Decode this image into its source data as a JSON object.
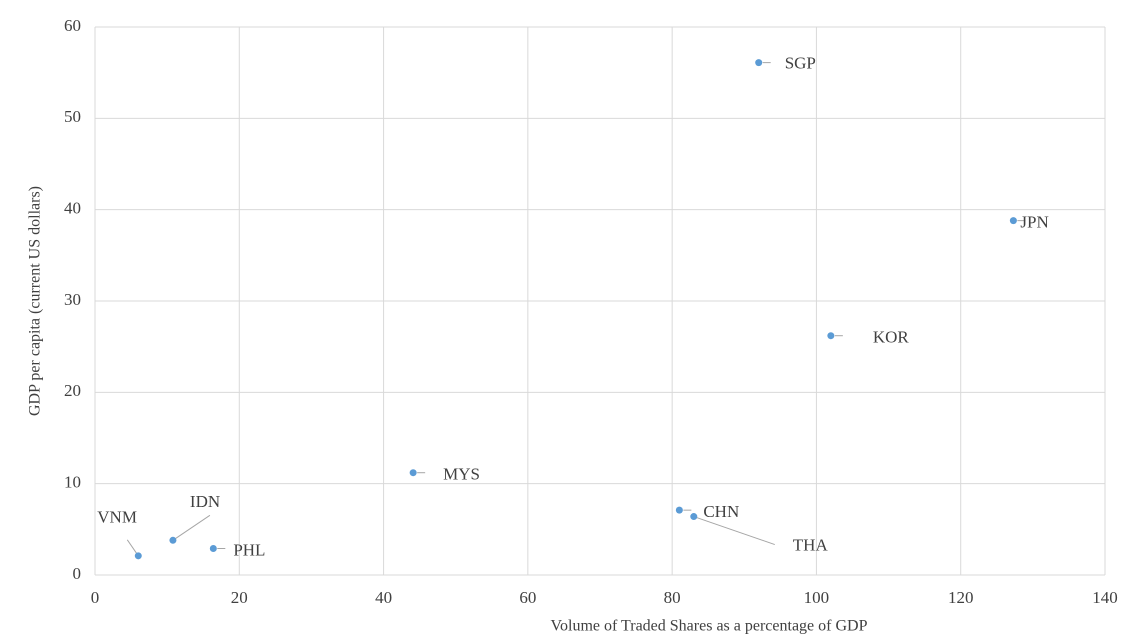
{
  "chart_data": {
    "type": "scatter",
    "x_label": "Volume of Traded Shares as a percentage of GDP",
    "y_label": "GDP per capita (current US dollars)",
    "labels": [
      "SGP",
      "JPN",
      "KOR",
      "MYS",
      "CHN",
      "THA",
      "VNM",
      "IDN",
      "PHL"
    ],
    "x": [
      92,
      127.3,
      102,
      44.1,
      81,
      83,
      6,
      10.8,
      16.4
    ],
    "values": [
      56.1,
      38.8,
      26.2,
      11.2,
      7.1,
      6.4,
      2.1,
      3.8,
      2.9
    ],
    "color": "#5b9bd5",
    "xlim": [
      0,
      140
    ],
    "xticks": [
      0,
      20,
      40,
      60,
      80,
      100,
      120,
      140
    ],
    "ylim": [
      0,
      60
    ],
    "yticks": [
      0,
      10,
      20,
      30,
      40,
      50,
      60
    ],
    "grid": true
  }
}
